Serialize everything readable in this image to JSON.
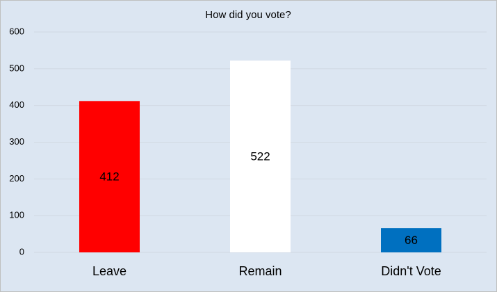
{
  "chart_data": {
    "type": "bar",
    "title": "How did you vote?",
    "categories": [
      "Leave",
      "Remain",
      "Didn't Vote"
    ],
    "values": [
      412,
      522,
      66
    ],
    "colors": [
      "#ff0000",
      "#ffffff",
      "#0070c0"
    ],
    "ylim": [
      0,
      600
    ],
    "yticks": [
      0,
      100,
      200,
      300,
      400,
      500,
      600
    ],
    "grid": true
  }
}
